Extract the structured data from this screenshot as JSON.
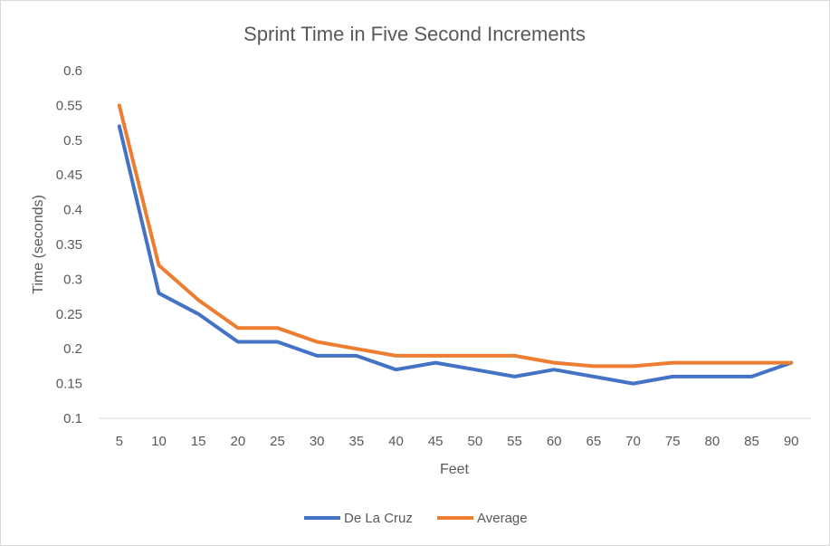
{
  "chart_data": {
    "type": "line",
    "title": "Sprint Time in Five Second Increments",
    "xlabel": "Feet",
    "ylabel": "Time (seconds)",
    "categories": [
      "5",
      "10",
      "15",
      "20",
      "25",
      "30",
      "35",
      "40",
      "45",
      "50",
      "55",
      "60",
      "65",
      "70",
      "75",
      "80",
      "85",
      "90"
    ],
    "ylim": [
      0.1,
      0.6
    ],
    "yticks": [
      "0.1",
      "0.15",
      "0.2",
      "0.25",
      "0.3",
      "0.35",
      "0.4",
      "0.45",
      "0.5",
      "0.55",
      "0.6"
    ],
    "grid": false,
    "legend_position": "bottom",
    "series": [
      {
        "name": "De La Cruz",
        "color": "#4472c4",
        "values": [
          0.52,
          0.28,
          0.25,
          0.21,
          0.21,
          0.19,
          0.19,
          0.17,
          0.18,
          0.17,
          0.16,
          0.17,
          0.16,
          0.15,
          0.16,
          0.16,
          0.16,
          0.18
        ]
      },
      {
        "name": "Average",
        "color": "#ed7d31",
        "values": [
          0.55,
          0.32,
          0.27,
          0.23,
          0.23,
          0.21,
          0.2,
          0.19,
          0.19,
          0.19,
          0.19,
          0.18,
          0.175,
          0.175,
          0.18,
          0.18,
          0.18,
          0.18
        ]
      }
    ]
  }
}
